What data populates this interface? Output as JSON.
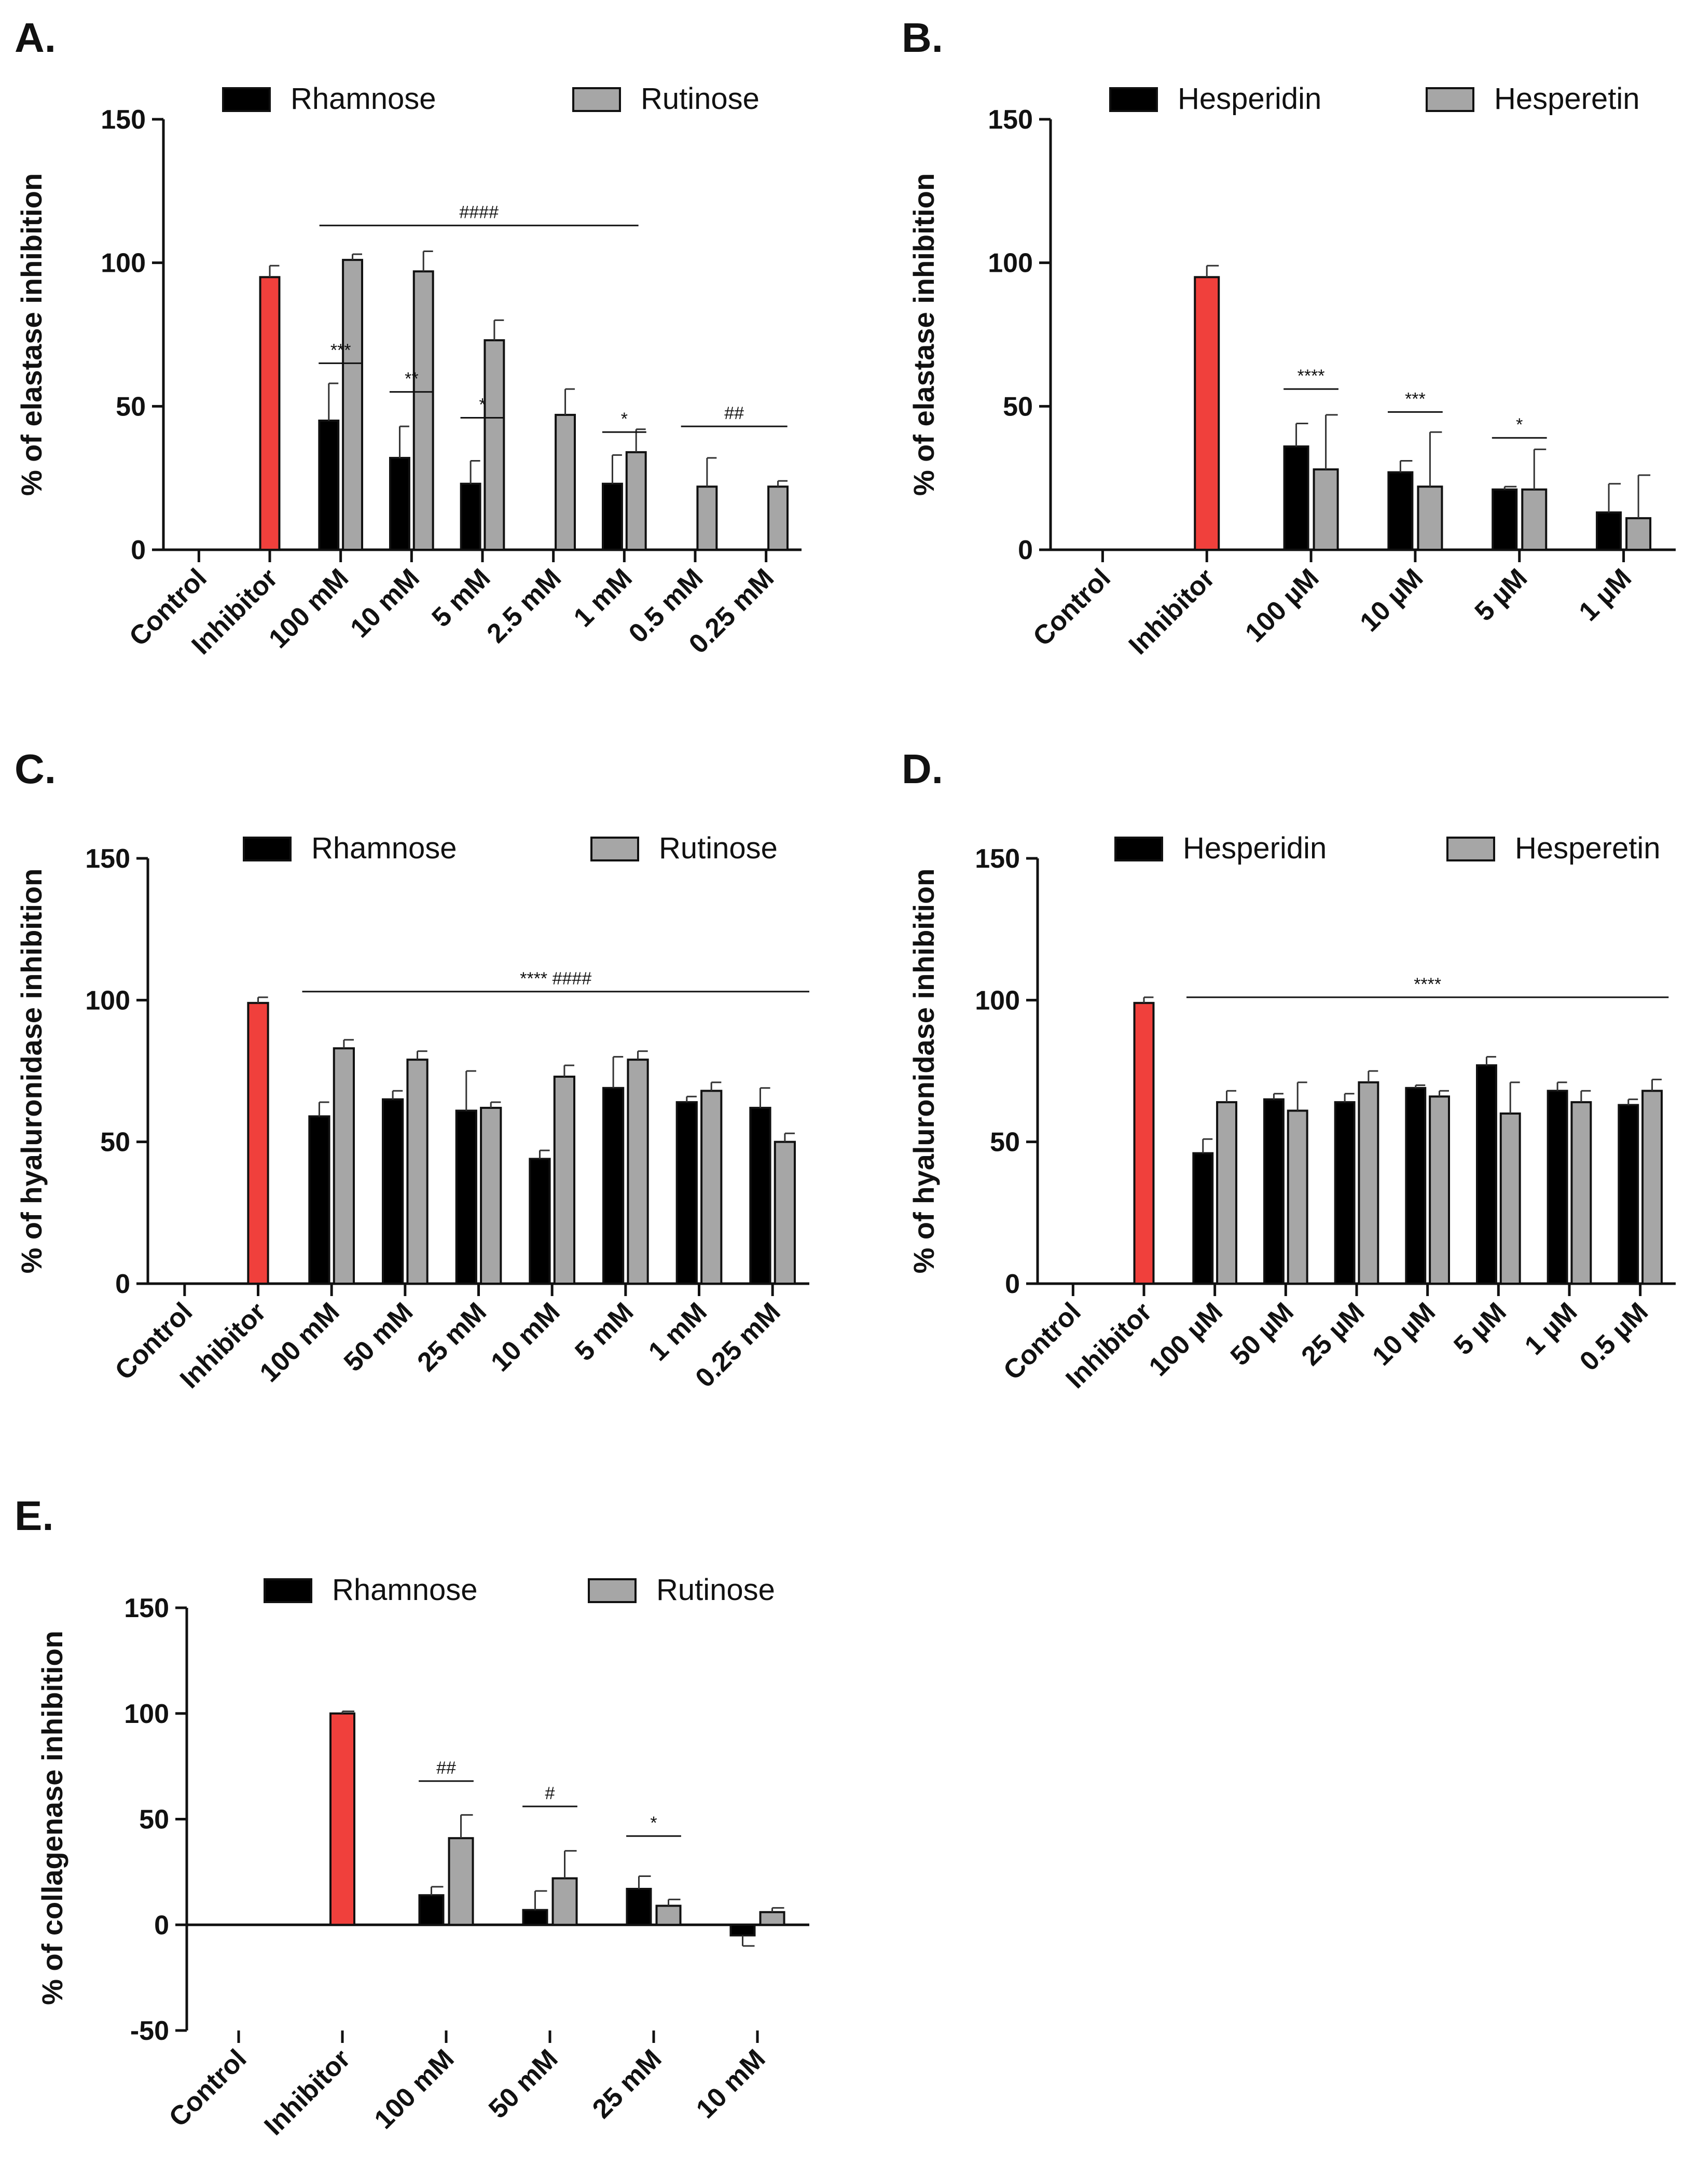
{
  "figure": {
    "panels": [
      "A.",
      "B.",
      "C.",
      "D.",
      "E."
    ]
  },
  "chart_data": [
    {
      "id": "A",
      "panel_label": "A.",
      "type": "bar",
      "ylabel": "% of elastase inhibition",
      "ylim": [
        0,
        150
      ],
      "yticks": [
        0,
        50,
        100,
        150
      ],
      "categories": [
        "Control",
        "Inhibitor",
        "100 mM",
        "10 mM",
        "5 mM",
        "2.5 mM",
        "1 mM",
        "0.5 mM",
        "0.25 mM"
      ],
      "series": [
        {
          "name": "Rhamnose",
          "color": "#000000",
          "values": [
            null,
            null,
            45,
            32,
            23,
            null,
            23,
            null,
            null
          ],
          "errors": [
            null,
            null,
            13,
            11,
            8,
            null,
            10,
            null,
            null
          ]
        },
        {
          "name": "Rutinose",
          "color": "#a6a6a6",
          "values": [
            null,
            null,
            101,
            97,
            73,
            47,
            34,
            22,
            22
          ],
          "errors": [
            null,
            null,
            2,
            7,
            7,
            9,
            8,
            10,
            2
          ]
        }
      ],
      "control": {
        "name": "Inhibitor",
        "color": "#f0403c",
        "value": 95,
        "error": 4
      },
      "annotations": [
        {
          "text": "***",
          "cat": 2,
          "type": "bracket",
          "value": 65
        },
        {
          "text": "**",
          "cat": 3,
          "type": "bracket",
          "value": 55
        },
        {
          "text": "*",
          "cat": 4,
          "type": "bracket",
          "value": 46
        },
        {
          "text": "*",
          "cat": 6,
          "type": "bracket",
          "value": 41
        },
        {
          "text": "####",
          "type": "line",
          "from": 1.7,
          "to": 6.2,
          "value": 113
        },
        {
          "text": "##",
          "type": "line",
          "from": 6.8,
          "to": 8.3,
          "value": 43
        }
      ]
    },
    {
      "id": "B",
      "panel_label": "B.",
      "type": "bar",
      "ylabel": "% of elastase inhibition",
      "ylim": [
        0,
        150
      ],
      "yticks": [
        0,
        50,
        100,
        150
      ],
      "categories": [
        "Control",
        "Inhibitor",
        "100 µM",
        "10 µM",
        "5 µM",
        "1 µM"
      ],
      "series": [
        {
          "name": "Hesperidin",
          "color": "#000000",
          "values": [
            null,
            null,
            36,
            27,
            21,
            13
          ],
          "errors": [
            null,
            null,
            8,
            4,
            1,
            10
          ]
        },
        {
          "name": "Hesperetin",
          "color": "#a6a6a6",
          "values": [
            null,
            null,
            28,
            22,
            21,
            11
          ],
          "errors": [
            null,
            null,
            19,
            19,
            14,
            15
          ]
        }
      ],
      "control": {
        "name": "Inhibitor",
        "color": "#f0403c",
        "value": 95,
        "error": 4
      },
      "annotations": [
        {
          "text": "****",
          "cat": 2,
          "type": "bracket",
          "value": 56
        },
        {
          "text": "***",
          "cat": 3,
          "type": "bracket",
          "value": 48
        },
        {
          "text": "*",
          "cat": 4,
          "type": "bracket",
          "value": 39
        }
      ]
    },
    {
      "id": "C",
      "panel_label": "C.",
      "type": "bar",
      "ylabel": "% of hyaluronidase inhibition",
      "ylim": [
        0,
        150
      ],
      "yticks": [
        0,
        50,
        100,
        150
      ],
      "categories": [
        "Control",
        "Inhibitor",
        "100 mM",
        "50 mM",
        "25 mM",
        "10 mM",
        "5 mM",
        "1 mM",
        "0.25 mM"
      ],
      "series": [
        {
          "name": "Rhamnose",
          "color": "#000000",
          "values": [
            null,
            null,
            59,
            65,
            61,
            44,
            69,
            64,
            62
          ],
          "errors": [
            null,
            null,
            5,
            3,
            14,
            3,
            11,
            2,
            7
          ]
        },
        {
          "name": "Rutinose",
          "color": "#a6a6a6",
          "values": [
            null,
            null,
            83,
            79,
            62,
            73,
            79,
            68,
            50
          ],
          "errors": [
            null,
            null,
            3,
            3,
            2,
            4,
            3,
            3,
            3
          ]
        }
      ],
      "control": {
        "name": "Inhibitor",
        "color": "#f0403c",
        "value": 99,
        "error": 2
      },
      "annotations": [
        {
          "text": "****   ####",
          "type": "line",
          "from": 1.6,
          "to": 8.5,
          "value": 103
        }
      ]
    },
    {
      "id": "D",
      "panel_label": "D.",
      "type": "bar",
      "ylabel": "% of hyaluronidase inhibition",
      "ylim": [
        0,
        150
      ],
      "yticks": [
        0,
        50,
        100,
        150
      ],
      "categories": [
        "Control",
        "Inhibitor",
        "100 µM",
        "50 µM",
        "25 µM",
        "10 µM",
        "5 µM",
        "1 µM",
        "0.5 µM"
      ],
      "series": [
        {
          "name": "Hesperidin",
          "color": "#000000",
          "values": [
            null,
            null,
            46,
            65,
            64,
            69,
            77,
            68,
            63
          ],
          "errors": [
            null,
            null,
            5,
            2,
            3,
            1,
            3,
            3,
            2
          ]
        },
        {
          "name": "Hesperetin",
          "color": "#a6a6a6",
          "values": [
            null,
            null,
            64,
            61,
            71,
            66,
            60,
            64,
            68
          ],
          "errors": [
            null,
            null,
            4,
            10,
            4,
            2,
            11,
            4,
            4
          ]
        }
      ],
      "control": {
        "name": "Inhibitor",
        "color": "#f0403c",
        "value": 99,
        "error": 2
      },
      "annotations": [
        {
          "text": "****",
          "type": "line",
          "from": 1.6,
          "to": 8.4,
          "value": 101
        }
      ]
    },
    {
      "id": "E",
      "panel_label": "E.",
      "type": "bar",
      "ylabel": "% of collagenase inhibition",
      "ylim": [
        -50,
        150
      ],
      "yticks": [
        -50,
        0,
        50,
        100,
        150
      ],
      "categories": [
        "Control",
        "Inhibitor",
        "100 mM",
        "50 mM",
        "25 mM",
        "10 mM"
      ],
      "series": [
        {
          "name": "Rhamnose",
          "color": "#000000",
          "values": [
            null,
            null,
            14,
            7,
            17,
            -5
          ],
          "errors": [
            null,
            null,
            4,
            9,
            6,
            5
          ]
        },
        {
          "name": "Rutinose",
          "color": "#a6a6a6",
          "values": [
            null,
            null,
            41,
            22,
            9,
            6
          ],
          "errors": [
            null,
            null,
            11,
            13,
            3,
            2
          ]
        }
      ],
      "control": {
        "name": "Inhibitor",
        "color": "#f0403c",
        "value": 100,
        "error": 1
      },
      "annotations": [
        {
          "text": "##",
          "cat": 2,
          "type": "bracket",
          "value": 68
        },
        {
          "text": "#",
          "cat": 3,
          "type": "bracket",
          "value": 56
        },
        {
          "text": "*",
          "cat": 4,
          "type": "bracket",
          "value": 42
        }
      ]
    }
  ]
}
